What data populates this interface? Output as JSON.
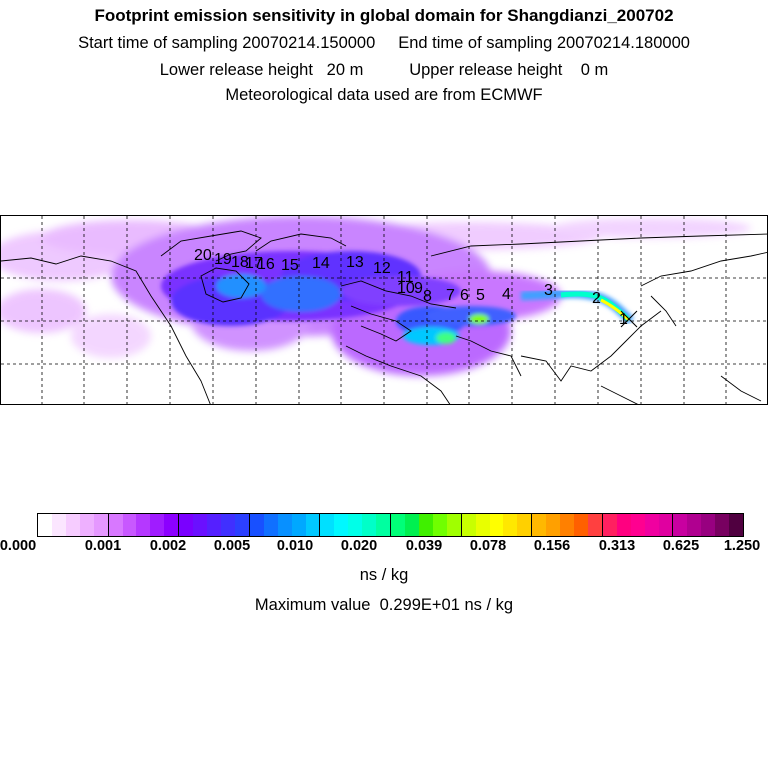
{
  "header": {
    "title": "Footprint emission sensitivity in global domain for Shangdianzi_200702",
    "line2": "Start time of sampling 20070214.150000     End time of sampling 20070214.180000",
    "line3": "Lower release height   20 m          Upper release height    0 m",
    "line4": "Meteorological data used are from ECMWF"
  },
  "map": {
    "trajectory_labels": [
      "1",
      "2",
      "3",
      "4",
      "5",
      "6",
      "7",
      "8",
      "9",
      "10",
      "11",
      "12",
      "13",
      "14",
      "15",
      "16",
      "17",
      "18",
      "19",
      "20"
    ],
    "source_marker": "x-marker",
    "coastline_color": "#000000",
    "grid_style": "dashed",
    "emission_hotspot_colors": [
      "#e0a0ff",
      "#b040ff",
      "#7020ff",
      "#3060ff",
      "#00c0ff",
      "#00ffcc",
      "#80ff00",
      "#ffff00"
    ]
  },
  "colorbar": {
    "tick_labels": [
      "0.000",
      "0.001",
      "0.002",
      "0.005",
      "0.010",
      "0.020",
      "0.039",
      "0.078",
      "0.156",
      "0.313",
      "0.625",
      "1.250"
    ],
    "colors": [
      "#ffffff",
      "#fbe6ff",
      "#f6ccff",
      "#eeb0ff",
      "#e598ff",
      "#d878ff",
      "#c858ff",
      "#b538ff",
      "#a01cff",
      "#8c00ff",
      "#7a00ff",
      "#6a10ff",
      "#5520ff",
      "#4030ff",
      "#2c40ff",
      "#1850ff",
      "#1070ff",
      "#0890ff",
      "#00a8ff",
      "#00c8ff",
      "#00e0ff",
      "#00f8ff",
      "#00ffe8",
      "#00ffc8",
      "#00ffa0",
      "#00ff78",
      "#00f050",
      "#40f000",
      "#70ff00",
      "#a0ff00",
      "#c8ff00",
      "#e8ff00",
      "#ffff00",
      "#ffe800",
      "#ffd000",
      "#ffb800",
      "#ffa000",
      "#ff8000",
      "#ff6000",
      "#ff4040",
      "#ff2060",
      "#ff0080",
      "#ff0090",
      "#f000a0",
      "#e000a0",
      "#c800a0",
      "#b00090",
      "#980080",
      "#780060",
      "#500040"
    ]
  },
  "units": "ns / kg",
  "max_value": "Maximum value  0.299E+01 ns / kg"
}
